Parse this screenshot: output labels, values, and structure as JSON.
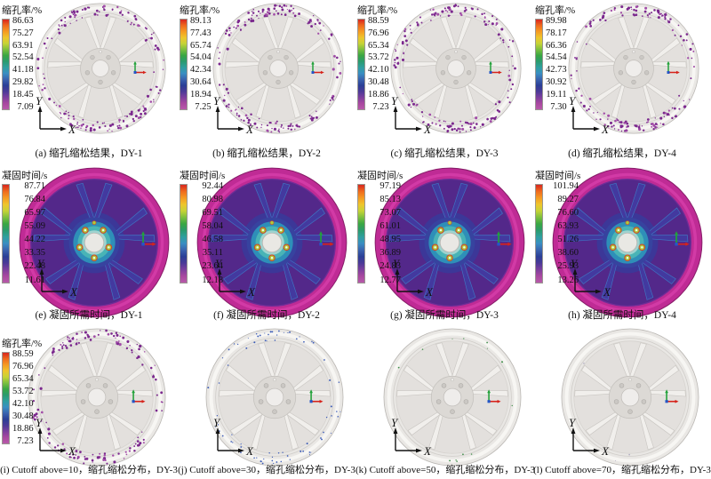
{
  "figure": {
    "axis": {
      "x": "X",
      "y": "Y"
    },
    "colors": {
      "colorbar_stops": [
        "#d8261f",
        "#ef6a1e",
        "#f59a22",
        "#efc52c",
        "#c6d336",
        "#7cbf3e",
        "#3aa643",
        "#2b9b6e",
        "#2f9f9f",
        "#3a8ec2",
        "#3a63ae",
        "#2b3f96",
        "#4b3a97",
        "#7c3f9e",
        "#a8489f",
        "#b85aaa"
      ],
      "porosity_dot": "#7b288e",
      "porosity_dot_light": "#a24da8",
      "cutoff30_dot": "#3c5cb8",
      "cutoff50_dot": "#3e8c48",
      "cutoff70_dot": "#b2aec2",
      "rim_magenta": "#bf2b95",
      "disc_purple": "#53288a",
      "spoke_blue_purple": "#43399f",
      "hub_teal": "#2e8fb8",
      "triad_green": "#22a13a",
      "triad_red": "#d6231b",
      "triad_blue": "#2456c8"
    },
    "panels": [
      {
        "id": "a",
        "legend_title": "缩孔率/%",
        "legend_values": [
          "86.63",
          "75.27",
          "63.91",
          "52.54",
          "41.18",
          "29.82",
          "18.45",
          "7.09"
        ],
        "caption": "(a) 缩孔缩松结果，DY-1",
        "wheel": {
          "type": "gray",
          "dot_count": 170,
          "dot_color": "#7b288e",
          "seed": 11
        }
      },
      {
        "id": "b",
        "legend_title": "缩孔率/%",
        "legend_values": [
          "89.13",
          "77.43",
          "65.74",
          "54.04",
          "42.34",
          "30.64",
          "18.94",
          "7.25"
        ],
        "caption": "(b) 缩孔缩松结果，DY-2",
        "wheel": {
          "type": "gray",
          "dot_count": 165,
          "dot_color": "#7b288e",
          "seed": 22
        }
      },
      {
        "id": "c",
        "legend_title": "缩孔率/%",
        "legend_values": [
          "88.59",
          "76.96",
          "65.34",
          "53.72",
          "42.10",
          "30.48",
          "18.86",
          "7.23"
        ],
        "caption": "(c) 缩孔缩松结果，DY-3",
        "wheel": {
          "type": "gray",
          "dot_count": 160,
          "dot_color": "#7b288e",
          "seed": 33
        }
      },
      {
        "id": "d",
        "legend_title": "缩孔率/%",
        "legend_values": [
          "89.98",
          "78.17",
          "66.36",
          "54.54",
          "42.73",
          "30.92",
          "19.11",
          "7.30"
        ],
        "caption": "(d) 缩孔缩松结果，DY-4",
        "wheel": {
          "type": "gray",
          "dot_count": 168,
          "dot_color": "#7b288e",
          "seed": 44
        }
      },
      {
        "id": "e",
        "legend_title": "凝固时间/s",
        "legend_values": [
          "87.71",
          "76.84",
          "65.97",
          "55.09",
          "44.22",
          "33.35",
          "22.48",
          "11.61"
        ],
        "caption": "(e) 凝固所需时间，DY-1",
        "wheel": {
          "type": "solid",
          "seed": 55
        }
      },
      {
        "id": "f",
        "legend_title": "凝固时间/s",
        "legend_values": [
          "92.44",
          "80.98",
          "69.51",
          "58.04",
          "46.58",
          "35.11",
          "23.64",
          "12.18"
        ],
        "caption": "(f) 凝固所需时间，DY-2",
        "wheel": {
          "type": "solid",
          "seed": 66
        }
      },
      {
        "id": "g",
        "legend_title": "凝固时间/s",
        "legend_values": [
          "97.19",
          "85.13",
          "73.07",
          "61.01",
          "48.95",
          "36.89",
          "24.83",
          "12.77"
        ],
        "caption": "(g) 凝固所需时间，DY-3",
        "wheel": {
          "type": "solid",
          "seed": 77
        }
      },
      {
        "id": "h",
        "legend_title": "凝固时间/s",
        "legend_values": [
          "101.94",
          "89.27",
          "76.60",
          "63.93",
          "51.26",
          "38.60",
          "25.93",
          "13.26"
        ],
        "caption": "(h) 凝固所需时间，DY-4",
        "wheel": {
          "type": "solid",
          "seed": 88
        }
      },
      {
        "id": "i",
        "legend_title": "缩孔率/%",
        "legend_values": [
          "88.59",
          "76.96",
          "65.34",
          "53.72",
          "42.10",
          "30.48",
          "18.86",
          "7.23"
        ],
        "caption": "(i) Cutoff above=10，缩孔缩松分布，DY-3",
        "wheel": {
          "type": "gray",
          "dot_count": 150,
          "dot_color": "#7b288e",
          "seed": 99
        }
      },
      {
        "id": "j",
        "legend_title": null,
        "legend_values": null,
        "caption": "(j) Cutoff above=30，缩孔缩松分布，DY-3",
        "wheel": {
          "type": "gray",
          "dot_count": 78,
          "dot_color": "#3c5cb8",
          "dot_small": true,
          "seed": 110
        }
      },
      {
        "id": "k",
        "legend_title": null,
        "legend_values": null,
        "caption": "(k) Cutoff above=50，缩孔缩松分布，DY-3",
        "wheel": {
          "type": "gray",
          "dot_count": 14,
          "dot_color": "#3e8c48",
          "dot_small": true,
          "seed": 121
        }
      },
      {
        "id": "l",
        "legend_title": null,
        "legend_values": null,
        "caption": "(l) Cutoff above=70，缩孔缩松分布，DY-3",
        "wheel": {
          "type": "gray",
          "dot_count": 4,
          "dot_color": "#b2aec2",
          "dot_small": true,
          "seed": 132
        }
      }
    ]
  }
}
